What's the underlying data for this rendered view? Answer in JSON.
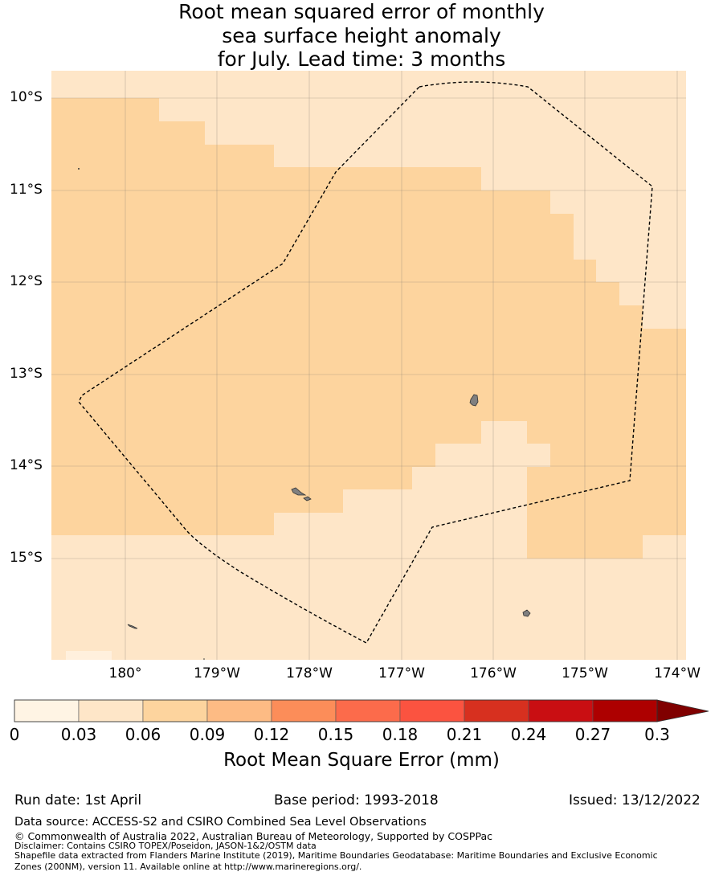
{
  "title": {
    "line1": "Root mean squared error of monthly",
    "line2": "sea surface height anomaly",
    "line3": "for July. Lead time: 3 months"
  },
  "map": {
    "lat_labels": [
      "10°S",
      "11°S",
      "12°S",
      "13°S",
      "14°S",
      "15°S"
    ],
    "lon_labels": [
      "180°",
      "179°W",
      "178°W",
      "177°W",
      "176°W",
      "175°W",
      "174°W"
    ],
    "colors": {
      "bin_0_03": "#fff0dd",
      "bin_03_06": "#fee6c8",
      "bin_06_09": "#fdd49e",
      "land": "#808080",
      "boundary": "#000000"
    }
  },
  "colorbar": {
    "ticks": [
      "0",
      "0.03",
      "0.06",
      "0.09",
      "0.12",
      "0.15",
      "0.18",
      "0.21",
      "0.24",
      "0.27",
      "0.3"
    ],
    "colors": [
      "#fff4e4",
      "#fee6c8",
      "#fdd49e",
      "#fdbb84",
      "#fc8d59",
      "#fc6b4b",
      "#fb5340",
      "#d7301f",
      "#c90e12",
      "#ad0000",
      "#800000"
    ],
    "label": "Root Mean Square Error (mm)"
  },
  "info": {
    "run_date": "Run date: 1st April",
    "base_period": "Base period: 1993-2018",
    "issued": "Issued: 13/12/2022"
  },
  "footer": {
    "data_source": "Data source: ACCESS-S2 and CSIRO Combined Sea Level Observations",
    "copyright": "© Commonwealth of Australia 2022, Australian Bureau of Meteorology, Supported by COSPPac",
    "disclaimer": "Disclaimer: Contains CSIRO TOPEX/Poseidon, JASON-1&2/OSTM data",
    "shapefile_line1": "Shapefile data extracted from Flanders Marine Institute (2019), Maritime Boundaries Geodatabase: Maritime Boundaries and Exclusive Economic",
    "shapefile_line2": "Zones (200NM), version 11. Available online at http://www.marineregions.org/."
  }
}
